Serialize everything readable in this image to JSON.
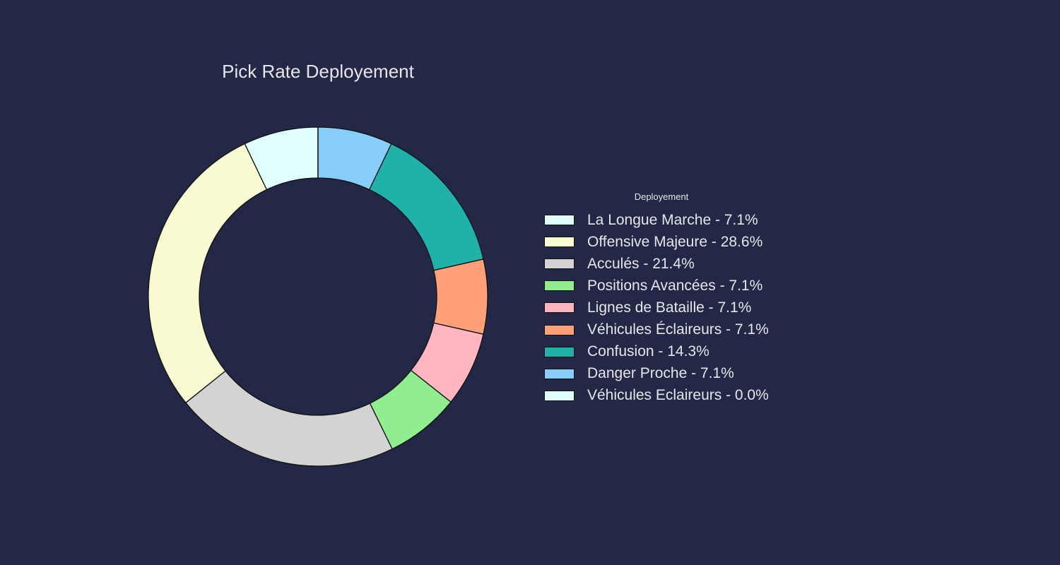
{
  "chart_data": {
    "type": "pie",
    "variant": "donut",
    "title": "Pick Rate Deployement",
    "legend": {
      "title": "Deployement",
      "placement": "right"
    },
    "background": "#222845",
    "start": "top",
    "direction": "counter-clockwise",
    "slices": [
      {
        "label": "La Longue Marche - 7.1%",
        "value": 7.1,
        "color": "#E0FFFF"
      },
      {
        "label": "Offensive Majeure - 28.6%",
        "value": 28.6,
        "color": "#FAFAD2"
      },
      {
        "label": "Acculés - 21.4%",
        "value": 21.4,
        "color": "#D3D3D3"
      },
      {
        "label": "Positions Avancées - 7.1%",
        "value": 7.1,
        "color": "#90EE90"
      },
      {
        "label": "Lignes de Bataille - 7.1%",
        "value": 7.1,
        "color": "#FFB6C1"
      },
      {
        "label": "Véhicules Éclaireurs - 7.1%",
        "value": 7.1,
        "color": "#FFA07A"
      },
      {
        "label": "Confusion - 14.3%",
        "value": 14.3,
        "color": "#20B2AA"
      },
      {
        "label": "Danger Proche - 7.1%",
        "value": 7.1,
        "color": "#87CEFA"
      },
      {
        "label": "Véhicules Eclaireurs - 0.0%",
        "value": 0.0,
        "color": "#E0FFFF"
      }
    ]
  }
}
